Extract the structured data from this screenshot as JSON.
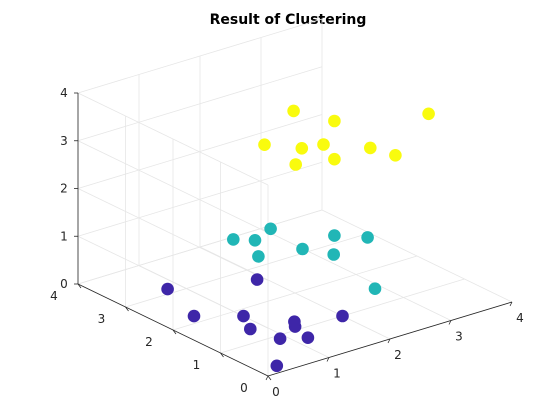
{
  "chart_data": {
    "type": "scatter",
    "projection": "3d",
    "title": "Result of Clustering",
    "xlabel": "",
    "ylabel": "",
    "zlabel": "",
    "xlim": [
      0,
      4
    ],
    "ylim": [
      0,
      4
    ],
    "zlim": [
      0,
      4
    ],
    "x_ticks": [
      "0",
      "1",
      "2",
      "3",
      "4"
    ],
    "y_ticks": [
      "0",
      "1",
      "2",
      "3",
      "4"
    ],
    "z_ticks": [
      "0",
      "1",
      "2",
      "3",
      "4"
    ],
    "grid": true,
    "legend": "none",
    "series": [
      {
        "color": "#3e26a8",
        "points": [
          [
            0.3,
            0.2,
            0.0
          ],
          [
            0.9,
            0.9,
            0.0
          ],
          [
            1.2,
            0.7,
            0.0
          ],
          [
            1.3,
            1.1,
            0.0
          ],
          [
            0.5,
            2.2,
            0.0
          ],
          [
            1.0,
            1.8,
            0.0
          ],
          [
            0.8,
            1.4,
            0.0
          ],
          [
            0.9,
            0.6,
            0.5
          ],
          [
            2.0,
            1.0,
            0.0
          ],
          [
            0.3,
            2.5,
            0.5
          ],
          [
            1.3,
            1.9,
            0.6
          ]
        ]
      },
      {
        "color": "#21b6b6",
        "points": [
          [
            1.5,
            1.2,
            1.5
          ],
          [
            1.6,
            2.0,
            1.5
          ],
          [
            2.1,
            1.3,
            1.5
          ],
          [
            1.7,
            0.8,
            1.5
          ],
          [
            2.1,
            0.6,
            1.8
          ],
          [
            1.3,
            2.4,
            1.2
          ],
          [
            1.5,
            2.2,
            1.2
          ],
          [
            1.4,
            2.0,
            1.0
          ],
          [
            2.3,
            0.7,
            0.6
          ]
        ]
      },
      {
        "color": "#f9fb0e",
        "points": [
          [
            1.5,
            2.0,
            3.3
          ],
          [
            2.0,
            1.4,
            3.4
          ],
          [
            1.8,
            1.6,
            3.3
          ],
          [
            2.3,
            0.8,
            3.5
          ],
          [
            2.4,
            0.4,
            3.5
          ],
          [
            2.1,
            1.3,
            3.9
          ],
          [
            1.9,
            1.9,
            3.9
          ],
          [
            1.7,
            1.6,
            3.0
          ],
          [
            2.1,
            1.3,
            3.1
          ],
          [
            3.1,
            0.6,
            4.0
          ]
        ]
      }
    ]
  }
}
